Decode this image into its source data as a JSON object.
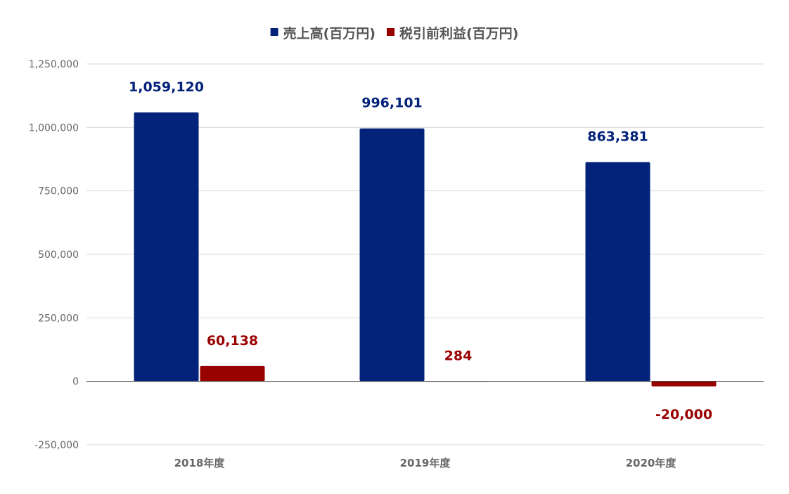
{
  "chart_data": {
    "type": "bar",
    "categories": [
      "2018年度",
      "2019年度",
      "2020年度"
    ],
    "series": [
      {
        "name": "売上高(百万円)",
        "values": [
          1059120,
          996101,
          863381
        ],
        "labels": [
          "1,059,120",
          "996,101",
          "863,381"
        ],
        "color": "#03227a"
      },
      {
        "name": "税引前利益(百万円)",
        "values": [
          60138,
          284,
          -20000
        ],
        "labels": [
          "60,138",
          "284",
          "-20,000"
        ],
        "color": "#990000"
      }
    ],
    "ylim": [
      -250000,
      1250000
    ],
    "yticks": [
      -250000,
      0,
      250000,
      500000,
      750000,
      1000000,
      1250000
    ],
    "ytick_labels": [
      "-250,000",
      "0",
      "250,000",
      "500,000",
      "750,000",
      "1,000,000",
      "1,250,000"
    ],
    "legend_position": "top-center",
    "grid": true,
    "title": "",
    "xlabel": "",
    "ylabel": ""
  },
  "colors": {
    "gridline": "#d9d9d9",
    "zero_line": "#333333"
  }
}
